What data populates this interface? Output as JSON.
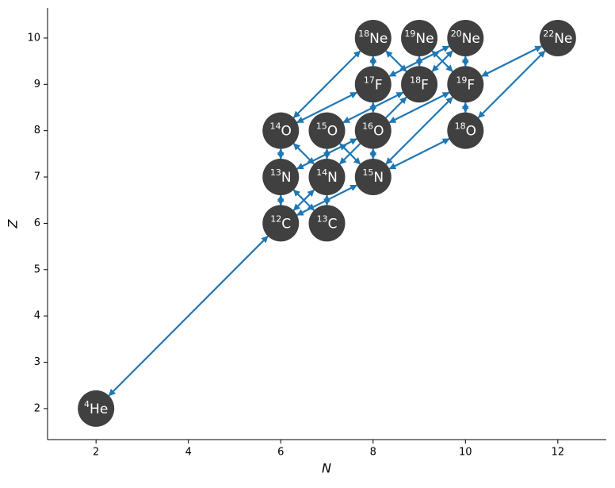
{
  "chart_data": {
    "type": "network",
    "x_label": "N",
    "y_label": "Z",
    "xlim": [
      0.95,
      13.05
    ],
    "ylim": [
      1.33,
      10.65
    ],
    "xticks": [
      2,
      4,
      6,
      8,
      10,
      12
    ],
    "yticks": [
      2,
      3,
      4,
      5,
      6,
      7,
      8,
      9,
      10
    ],
    "node_color": "#404040",
    "link_color": "#1f77b4",
    "nodes": [
      {
        "mass": 4,
        "element": "He",
        "n": 2,
        "z": 2
      },
      {
        "mass": 12,
        "element": "C",
        "n": 6,
        "z": 6
      },
      {
        "mass": 13,
        "element": "C",
        "n": 7,
        "z": 6
      },
      {
        "mass": 13,
        "element": "N",
        "n": 6,
        "z": 7
      },
      {
        "mass": 14,
        "element": "N",
        "n": 7,
        "z": 7
      },
      {
        "mass": 15,
        "element": "N",
        "n": 8,
        "z": 7
      },
      {
        "mass": 14,
        "element": "O",
        "n": 6,
        "z": 8
      },
      {
        "mass": 15,
        "element": "O",
        "n": 7,
        "z": 8
      },
      {
        "mass": 16,
        "element": "O",
        "n": 8,
        "z": 8
      },
      {
        "mass": 18,
        "element": "O",
        "n": 10,
        "z": 8
      },
      {
        "mass": 17,
        "element": "F",
        "n": 8,
        "z": 9
      },
      {
        "mass": 18,
        "element": "F",
        "n": 9,
        "z": 9
      },
      {
        "mass": 19,
        "element": "F",
        "n": 10,
        "z": 9
      },
      {
        "mass": 18,
        "element": "Ne",
        "n": 8,
        "z": 10
      },
      {
        "mass": 19,
        "element": "Ne",
        "n": 9,
        "z": 10
      },
      {
        "mass": 20,
        "element": "Ne",
        "n": 10,
        "z": 10
      },
      {
        "mass": 22,
        "element": "Ne",
        "n": 12,
        "z": 10
      }
    ],
    "links": [
      {
        "from": [
          2,
          2
        ],
        "to": [
          6,
          6
        ]
      },
      {
        "from": [
          6,
          6
        ],
        "to": [
          6,
          7
        ]
      },
      {
        "from": [
          7,
          6
        ],
        "to": [
          7,
          7
        ]
      },
      {
        "from": [
          6,
          7
        ],
        "to": [
          7,
          6
        ]
      },
      {
        "from": [
          6,
          7
        ],
        "to": [
          6,
          8
        ]
      },
      {
        "from": [
          6,
          8
        ],
        "to": [
          7,
          7
        ]
      },
      {
        "from": [
          7,
          7
        ],
        "to": [
          7,
          8
        ]
      },
      {
        "from": [
          7,
          8
        ],
        "to": [
          8,
          7
        ]
      },
      {
        "from": [
          8,
          7
        ],
        "to": [
          8,
          8
        ]
      },
      {
        "from": [
          8,
          7
        ],
        "to": [
          6,
          6
        ]
      },
      {
        "from": [
          7,
          7
        ],
        "to": [
          6,
          6
        ]
      },
      {
        "from": [
          8,
          8
        ],
        "to": [
          6,
          7
        ]
      },
      {
        "from": [
          6,
          8
        ],
        "to": [
          8,
          9
        ]
      },
      {
        "from": [
          6,
          8
        ],
        "to": [
          8,
          10
        ]
      },
      {
        "from": [
          7,
          8
        ],
        "to": [
          9,
          9
        ]
      },
      {
        "from": [
          8,
          8
        ],
        "to": [
          10,
          9
        ]
      },
      {
        "from": [
          8,
          7
        ],
        "to": [
          10,
          9
        ]
      },
      {
        "from": [
          8,
          7
        ],
        "to": [
          10,
          8
        ]
      },
      {
        "from": [
          7,
          7
        ],
        "to": [
          9,
          9
        ]
      },
      {
        "from": [
          8,
          8
        ],
        "to": [
          8,
          9
        ]
      },
      {
        "from": [
          8,
          9
        ],
        "to": [
          8,
          10
        ]
      },
      {
        "from": [
          8,
          9
        ],
        "to": [
          10,
          10
        ]
      },
      {
        "from": [
          8,
          10
        ],
        "to": [
          9,
          9
        ]
      },
      {
        "from": [
          9,
          9
        ],
        "to": [
          9,
          10
        ]
      },
      {
        "from": [
          9,
          9
        ],
        "to": [
          10,
          10
        ]
      },
      {
        "from": [
          9,
          10
        ],
        "to": [
          10,
          9
        ]
      },
      {
        "from": [
          10,
          9
        ],
        "to": [
          10,
          10
        ]
      },
      {
        "from": [
          10,
          8
        ],
        "to": [
          10,
          9
        ]
      },
      {
        "from": [
          10,
          8
        ],
        "to": [
          12,
          10
        ]
      },
      {
        "from": [
          10,
          9
        ],
        "to": [
          12,
          10
        ]
      }
    ]
  }
}
